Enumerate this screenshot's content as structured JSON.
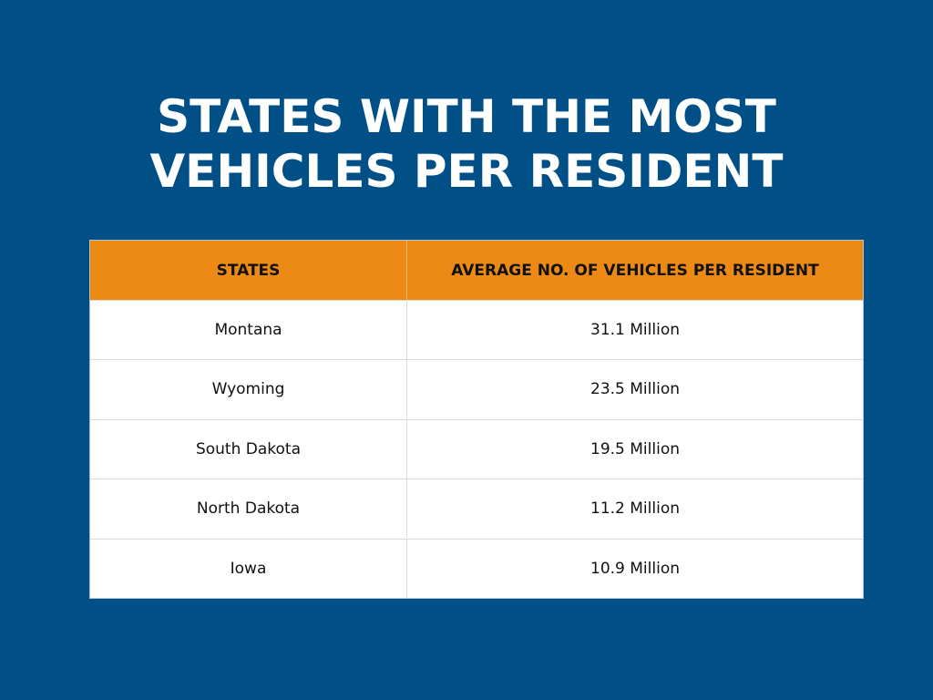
{
  "title": {
    "line1": "STATES WITH THE MOST",
    "line2": "VEHICLES PER RESIDENT"
  },
  "colors": {
    "background": "#005087",
    "header": "#ec8a15",
    "title_text": "#ffffff"
  },
  "chart_data": {
    "type": "table",
    "title": "STATES WITH THE MOST VEHICLES PER RESIDENT",
    "columns": [
      "STATES",
      "AVERAGE NO. OF VEHICLES PER RESIDENT"
    ],
    "rows": [
      [
        "Montana",
        "31.1 Million"
      ],
      [
        "Wyoming",
        "23.5 Million"
      ],
      [
        "South Dakota",
        "19.5 Million"
      ],
      [
        "North Dakota",
        "11.2 Million"
      ],
      [
        "Iowa",
        "10.9 Million"
      ]
    ]
  }
}
